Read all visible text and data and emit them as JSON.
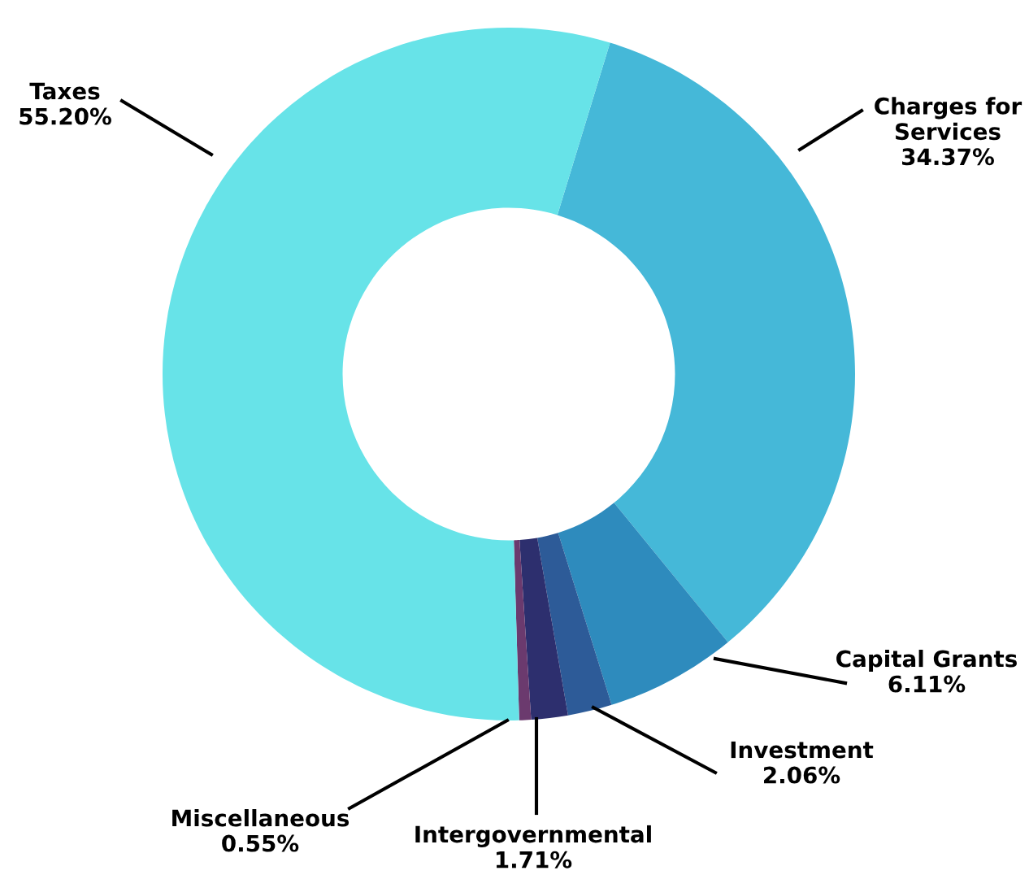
{
  "chart_data": {
    "type": "donut",
    "categories": [
      "Charges for Services",
      "Capital Grants",
      "Investment",
      "Intergovernmental",
      "Miscellaneous",
      "Taxes"
    ],
    "values": [
      34.37,
      6.11,
      2.06,
      1.71,
      0.55,
      55.2
    ],
    "value_labels": [
      "34.37%",
      "6.11%",
      "2.06%",
      "1.71%",
      "0.55%",
      "55.20%"
    ],
    "colors": [
      "#45b8d8",
      "#2e8bbd",
      "#2d5b98",
      "#2d2f6e",
      "#6b3a6e",
      "#67e3e8"
    ],
    "legend": false
  }
}
